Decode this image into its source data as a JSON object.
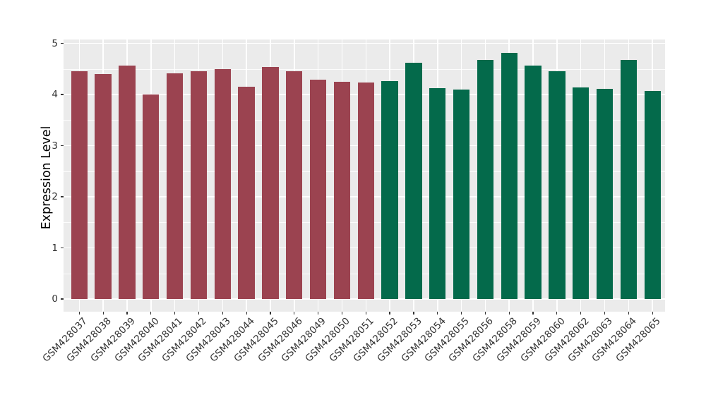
{
  "figure": {
    "background": "#FFFFFF",
    "panel_background": "#EBEBEB",
    "gridline_color": "#FFFFFF",
    "axis_text_color": "#333333",
    "tick_mark_color": "#333333",
    "axis_title_color": "#000000"
  },
  "chart_data": {
    "type": "bar",
    "title": "",
    "xlabel": "",
    "ylabel": "Expression Level",
    "ylim": [
      0,
      5
    ],
    "yticks": [
      "0",
      "1",
      "2",
      "3",
      "4",
      "5"
    ],
    "grid": {
      "h_major_step": 1,
      "h_minor_step": 0.5,
      "v_major": "category-centers",
      "panel": "gray",
      "lines": "white"
    },
    "legend": "none",
    "categories": [
      "GSM428037",
      "GSM428038",
      "GSM428039",
      "GSM428040",
      "GSM428041",
      "GSM428042",
      "GSM428043",
      "GSM428044",
      "GSM428045",
      "GSM428046",
      "GSM428049",
      "GSM428050",
      "GSM428051",
      "GSM428052",
      "GSM428053",
      "GSM428054",
      "GSM428055",
      "GSM428056",
      "GSM428058",
      "GSM428059",
      "GSM428060",
      "GSM428062",
      "GSM428063",
      "GSM428064",
      "GSM428065"
    ],
    "values": [
      4.46,
      4.4,
      4.56,
      4.0,
      4.41,
      4.45,
      4.5,
      4.15,
      4.54,
      4.46,
      4.29,
      4.25,
      4.24,
      4.26,
      4.62,
      4.12,
      4.09,
      4.67,
      4.82,
      4.57,
      4.45,
      4.14,
      4.11,
      4.67,
      4.07
    ],
    "bar_group": [
      0,
      0,
      0,
      0,
      0,
      0,
      0,
      0,
      0,
      0,
      0,
      0,
      0,
      1,
      1,
      1,
      1,
      1,
      1,
      1,
      1,
      1,
      1,
      1,
      1
    ],
    "group_colors": [
      "#9B4350",
      "#046A4B"
    ]
  }
}
